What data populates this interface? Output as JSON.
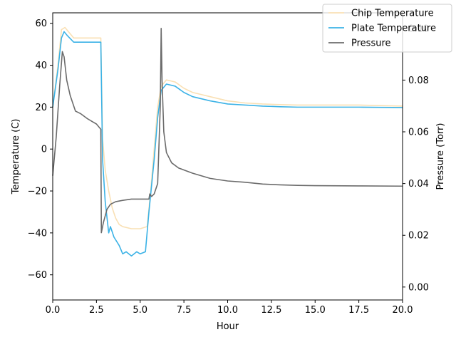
{
  "chart_data": {
    "type": "line",
    "xlabel": "Hour",
    "ylabel_left": "Temperature (C)",
    "ylabel_right": "Pressure (Torr)",
    "xlim": [
      0,
      20
    ],
    "ylim_left": [
      -72,
      65
    ],
    "ylim_right": [
      -0.005,
      0.106
    ],
    "x_ticks": [
      0,
      2.5,
      5,
      7.5,
      10,
      12.5,
      15,
      17.5,
      20
    ],
    "x_tick_labels": [
      "0.0",
      "2.5",
      "5.0",
      "7.5",
      "10.0",
      "12.5",
      "15.0",
      "17.5",
      "20.0"
    ],
    "left_ticks": [
      -60,
      -40,
      -20,
      0,
      20,
      40,
      60
    ],
    "left_tick_labels": [
      "−60",
      "−40",
      "−20",
      "0",
      "20",
      "40",
      "60"
    ],
    "right_ticks": [
      0.0,
      0.02,
      0.04,
      0.06,
      0.08,
      0.1
    ],
    "right_tick_labels": [
      "0.00",
      "0.02",
      "0.04",
      "0.06",
      "0.08",
      "0.10"
    ],
    "grid": false,
    "legend_position": "top-right",
    "series": [
      {
        "name": "Chip Temperature",
        "axis": "left",
        "color": "#f9e0b4",
        "x": [
          0,
          0.3,
          0.5,
          0.7,
          0.9,
          1.2,
          1.5,
          2.0,
          2.5,
          2.75,
          2.85,
          3.0,
          3.2,
          3.4,
          3.6,
          3.8,
          4.0,
          4.5,
          5.0,
          5.4,
          5.6,
          5.8,
          6.0,
          6.2,
          6.5,
          7.0,
          7.5,
          8.0,
          9.0,
          10.0,
          11.0,
          12.0,
          13.0,
          14.0,
          15.0,
          17.5,
          20.0
        ],
        "y": [
          20,
          40,
          57,
          58,
          56,
          53,
          53,
          53,
          53,
          53,
          5,
          -10,
          -20,
          -28,
          -33,
          -36,
          -37,
          -38,
          -38,
          -37,
          -20,
          0,
          20,
          30,
          33,
          32,
          29,
          27,
          25,
          23,
          22,
          21.5,
          21.2,
          21,
          21,
          21,
          20.5
        ]
      },
      {
        "name": "Plate Temperature",
        "axis": "left",
        "color": "#3bb2e6",
        "x": [
          0,
          0.3,
          0.5,
          0.65,
          0.85,
          1.2,
          1.5,
          2.0,
          2.5,
          2.75,
          2.85,
          3.0,
          3.2,
          3.3,
          3.5,
          3.8,
          4.0,
          4.2,
          4.5,
          4.8,
          5.0,
          5.3,
          5.5,
          5.8,
          6.0,
          6.2,
          6.5,
          7.0,
          7.5,
          8.0,
          9.0,
          10.0,
          11.0,
          12.0,
          13.0,
          14.0,
          15.0,
          17.5,
          20.0
        ],
        "y": [
          20,
          38,
          53,
          56,
          54,
          51,
          51,
          51,
          51,
          51,
          -5,
          -25,
          -40,
          -37,
          -42,
          -46,
          -50,
          -49,
          -51,
          -49,
          -50,
          -49,
          -30,
          -5,
          15,
          28,
          31,
          30,
          27,
          25,
          23,
          21.5,
          21,
          20.5,
          20.2,
          20,
          20,
          20,
          19.8
        ]
      },
      {
        "name": "Pressure",
        "axis": "right",
        "color": "#6b6b6b",
        "x": [
          0,
          0.2,
          0.4,
          0.55,
          0.65,
          0.8,
          1.0,
          1.3,
          1.6,
          2.0,
          2.5,
          2.75,
          2.78,
          2.9,
          3.1,
          3.3,
          3.6,
          4.0,
          4.5,
          5.0,
          5.5,
          5.55,
          5.65,
          5.8,
          6.0,
          6.15,
          6.2,
          6.25,
          6.35,
          6.5,
          6.8,
          7.2,
          7.6,
          8.0,
          9.0,
          10.0,
          11.0,
          12.0,
          13.0,
          14.0,
          15.0,
          17.5,
          20.0
        ],
        "y": [
          0.043,
          0.058,
          0.078,
          0.091,
          0.089,
          0.08,
          0.074,
          0.068,
          0.067,
          0.065,
          0.063,
          0.061,
          0.021,
          0.025,
          0.03,
          0.032,
          0.033,
          0.0335,
          0.034,
          0.034,
          0.034,
          0.036,
          0.035,
          0.036,
          0.04,
          0.07,
          0.1,
          0.08,
          0.06,
          0.052,
          0.048,
          0.046,
          0.045,
          0.044,
          0.042,
          0.041,
          0.0405,
          0.0398,
          0.0395,
          0.0393,
          0.0392,
          0.0391,
          0.039
        ]
      }
    ]
  }
}
